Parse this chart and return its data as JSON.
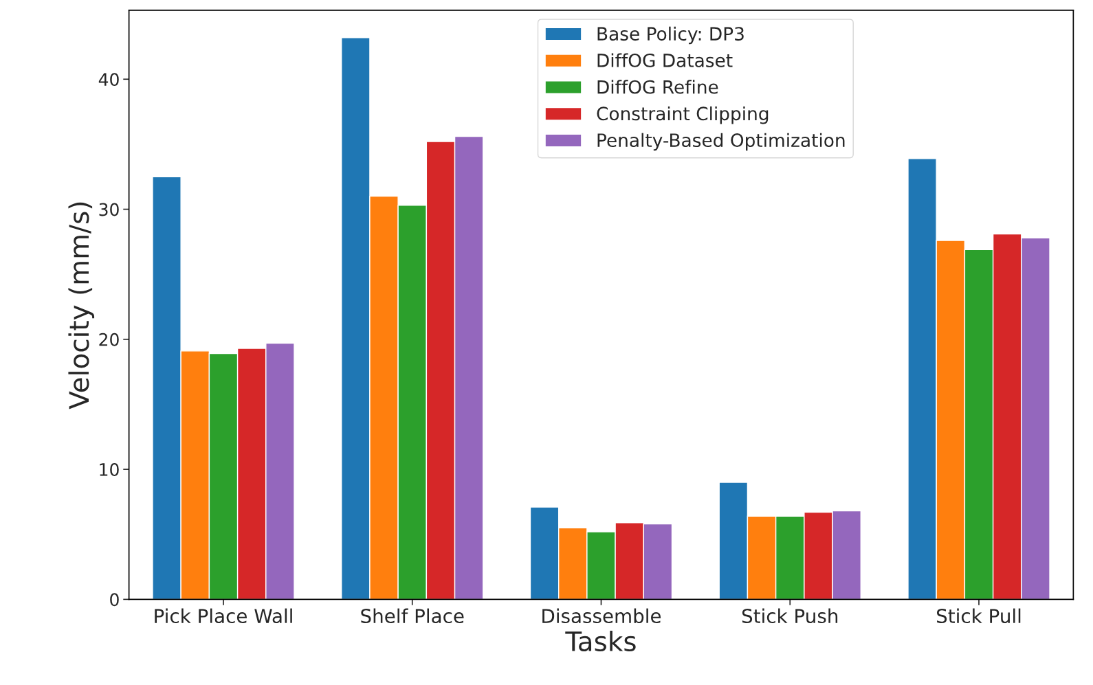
{
  "chart_data": {
    "type": "bar",
    "xlabel": "Tasks",
    "ylabel": "Velocity (mm/s)",
    "categories": [
      "Pick Place Wall",
      "Shelf Place",
      "Disassemble",
      "Stick Push",
      "Stick Pull"
    ],
    "series": [
      {
        "name": "Base Policy: DP3",
        "color": "#1f77b4",
        "values": [
          32.5,
          43.2,
          7.1,
          9.0,
          33.9
        ]
      },
      {
        "name": "DiffOG Dataset",
        "color": "#ff7f0e",
        "values": [
          19.1,
          31.0,
          5.5,
          6.4,
          27.6
        ]
      },
      {
        "name": "DiffOG Refine",
        "color": "#2ca02c",
        "values": [
          18.9,
          30.3,
          5.2,
          6.4,
          26.9
        ]
      },
      {
        "name": "Constraint Clipping",
        "color": "#d62728",
        "values": [
          19.3,
          35.2,
          5.9,
          6.7,
          28.1
        ]
      },
      {
        "name": "Penalty-Based Optimization",
        "color": "#9467bd",
        "values": [
          19.7,
          35.6,
          5.8,
          6.8,
          27.8
        ]
      }
    ],
    "ylim": [
      0,
      45.3
    ],
    "yticks": [
      0,
      10,
      20,
      30,
      40
    ],
    "legend": "top",
    "grid": false
  }
}
